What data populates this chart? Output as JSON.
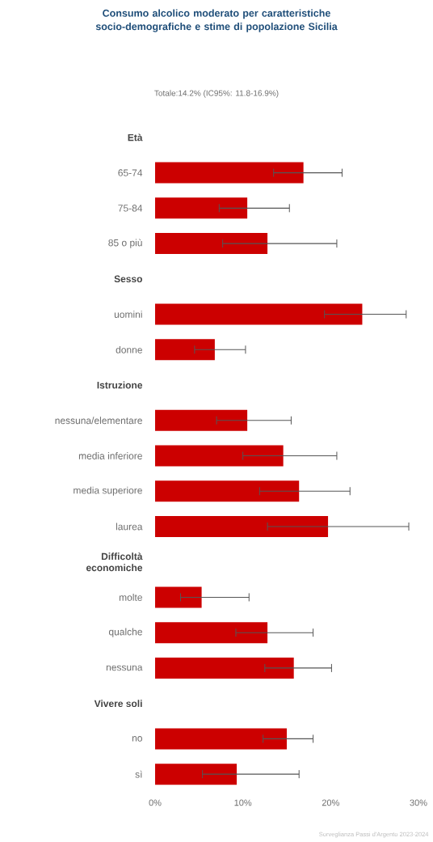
{
  "chart_data": {
    "type": "bar",
    "orientation": "horizontal",
    "title": "Consumo alcolico moderato per caratteristiche socio-demografiche e stime di popolazione Sicilia",
    "subtitle": "Totale:14.2% (IC95%: 11.8-16.9%)",
    "categories": [
      "Età",
      "65-74",
      "75-84",
      "85 o più",
      "Sesso",
      "uomini",
      "donne",
      "Istruzione",
      "nessuna/elementare",
      "media inferiore",
      "media superiore",
      "laurea",
      "Difficoltà economiche",
      "molte",
      "qualche",
      "nessuna",
      "Vivere soli",
      "no",
      "sì"
    ],
    "values": [
      null,
      16.9,
      10.5,
      12.8,
      null,
      23.6,
      6.8,
      null,
      10.5,
      14.6,
      16.4,
      19.7,
      null,
      5.3,
      12.8,
      15.8,
      null,
      15.0,
      9.3
    ],
    "errors": [
      null,
      [
        13.5,
        21.3
      ],
      [
        7.3,
        15.3
      ],
      [
        7.7,
        20.7
      ],
      null,
      [
        19.3,
        28.6
      ],
      [
        4.5,
        10.3
      ],
      null,
      [
        7.0,
        15.5
      ],
      [
        10.0,
        20.7
      ],
      [
        11.9,
        22.2
      ],
      [
        12.8,
        28.9
      ],
      null,
      [
        2.9,
        10.7
      ],
      [
        9.2,
        18.0
      ],
      [
        12.5,
        20.1
      ],
      null,
      [
        12.3,
        18.0
      ],
      [
        5.4,
        16.4
      ]
    ],
    "color": "#cc0000",
    "xlim": [
      0,
      30
    ],
    "xticks": [
      {
        "value": 0,
        "label": "0%"
      },
      {
        "value": 10,
        "label": "10%"
      },
      {
        "value": 20,
        "label": "20%"
      },
      {
        "value": 30,
        "label": "30%"
      }
    ],
    "annotations": [
      "Sorveglianza Passi d'Argento 2023-2024"
    ]
  }
}
